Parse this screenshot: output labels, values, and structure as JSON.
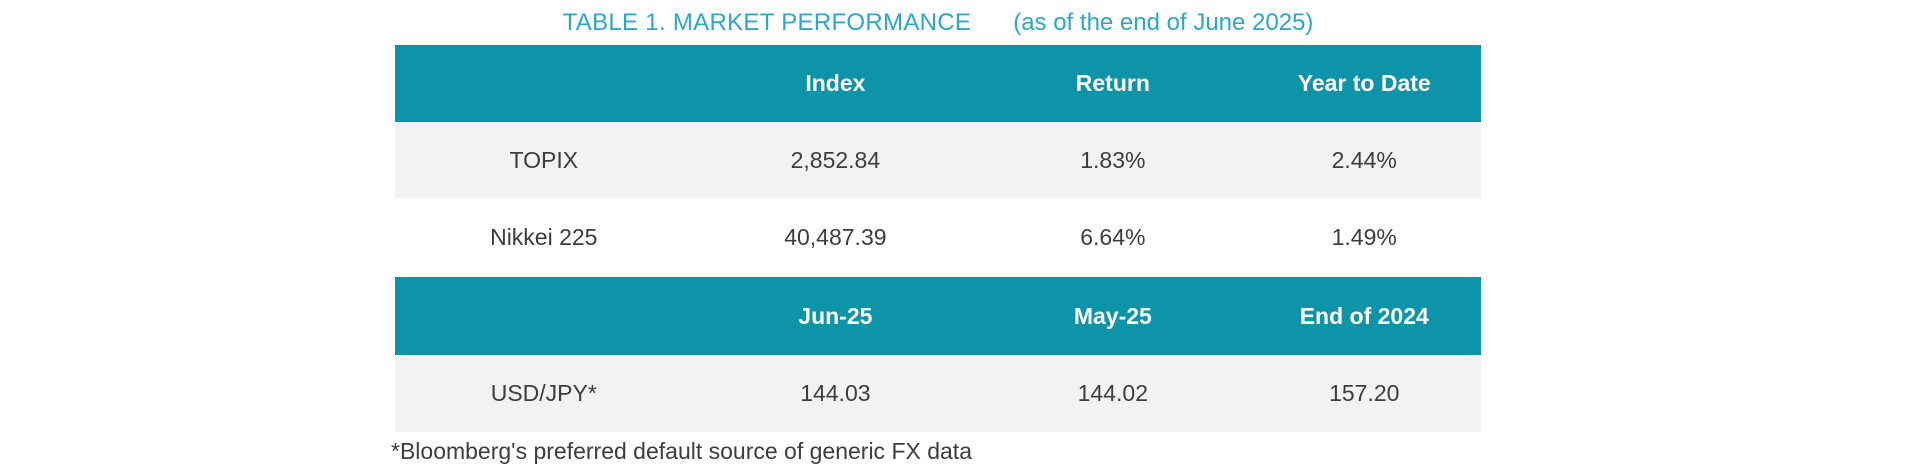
{
  "title": {
    "main": "TABLE 1. MARKET PERFORMANCE",
    "date_note": "(as of the end of June 2025)"
  },
  "colors": {
    "header_bg": "#0d94a8",
    "title_text": "#2ca7c7",
    "row_stripe": "#f2f2f2",
    "body_text": "#3d3d3d",
    "header_text": "#ffffff"
  },
  "market_table": {
    "section1": {
      "headers": {
        "col1": "",
        "col2": "Index",
        "col3": "Return",
        "col4": "Year to Date"
      },
      "rows": [
        {
          "label": "TOPIX",
          "index": "2,852.84",
          "return": "1.83%",
          "ytd": "2.44%"
        },
        {
          "label": "Nikkei 225",
          "index": "40,487.39",
          "return": "6.64%",
          "ytd": "1.49%"
        }
      ]
    },
    "section2": {
      "headers": {
        "col1": "",
        "col2": "Jun-25",
        "col3": "May-25",
        "col4": "End of 2024"
      },
      "rows": [
        {
          "label": "USD/JPY*",
          "jun25": "144.03",
          "may25": "144.02",
          "end_2024": "157.20"
        }
      ]
    }
  },
  "footnote": "*Bloomberg's preferred default source of generic FX data",
  "chart_data": {
    "type": "table",
    "title": "TABLE 1. MARKET PERFORMANCE (as of the end of June 2025)",
    "sections": [
      {
        "columns": [
          "",
          "Index",
          "Return",
          "Year to Date"
        ],
        "rows": [
          [
            "TOPIX",
            2852.84,
            "1.83%",
            "2.44%"
          ],
          [
            "Nikkei 225",
            40487.39,
            "6.64%",
            "1.49%"
          ]
        ]
      },
      {
        "columns": [
          "",
          "Jun-25",
          "May-25",
          "End of 2024"
        ],
        "rows": [
          [
            "USD/JPY*",
            144.03,
            144.02,
            157.2
          ]
        ]
      }
    ],
    "footnote": "*Bloomberg's preferred default source of generic FX data"
  }
}
